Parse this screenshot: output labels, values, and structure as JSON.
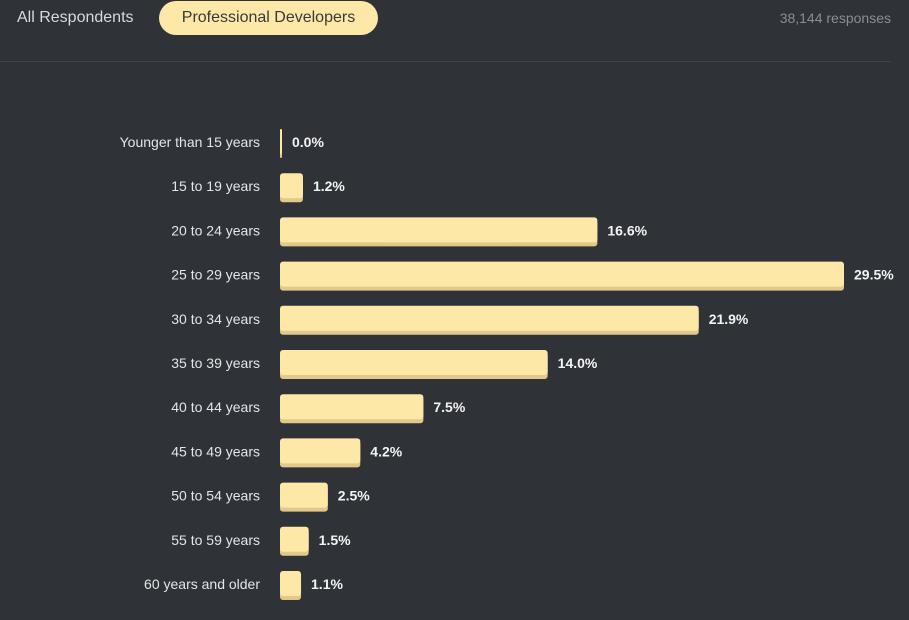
{
  "tabs": [
    {
      "label": "All Respondents",
      "active": false
    },
    {
      "label": "Professional Developers",
      "active": true
    }
  ],
  "responses": "38,144 responses",
  "colors": {
    "bar": "#fde8a8",
    "bar_shadow": "#e2c98a",
    "background": "#2f3237"
  },
  "chart_data": {
    "type": "bar",
    "orientation": "horizontal",
    "categories": [
      "Younger than 15 years",
      "15 to 19 years",
      "20 to 24 years",
      "25 to 29 years",
      "30 to 34 years",
      "35 to 39 years",
      "40 to 44 years",
      "45 to 49 years",
      "50 to 54 years",
      "55 to 59 years",
      "60 years and older"
    ],
    "values": [
      0.0,
      1.2,
      16.6,
      29.5,
      21.9,
      14.0,
      7.5,
      4.2,
      2.5,
      1.5,
      1.1
    ],
    "value_labels": [
      "0.0%",
      "1.2%",
      "16.6%",
      "29.5%",
      "21.9%",
      "14.0%",
      "7.5%",
      "4.2%",
      "2.5%",
      "1.5%",
      "1.1%"
    ],
    "unit": "%",
    "xlim": [
      0,
      29.5
    ],
    "grid": false,
    "legend": "none"
  }
}
